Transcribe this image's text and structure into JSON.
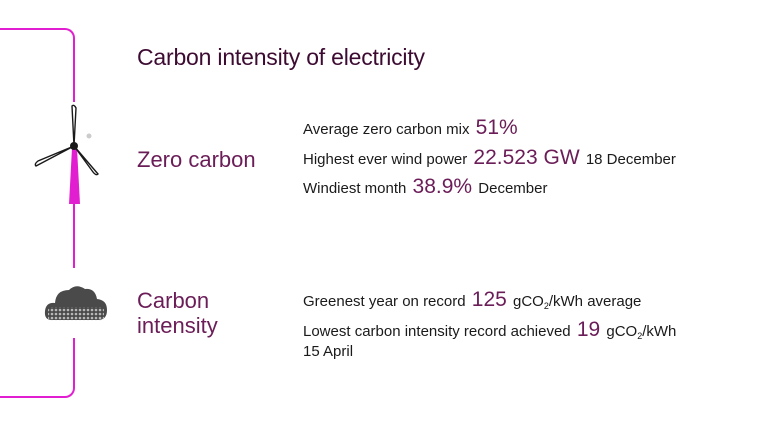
{
  "title": "Carbon intensity of electricity",
  "icons": {
    "wind": "wind-turbine-icon",
    "cloud": "carbon-cloud-icon"
  },
  "colors": {
    "accent": "#e21fd0",
    "heading": "#3d0b32",
    "highlight": "#6b1d58"
  },
  "zero_carbon": {
    "label": "Zero carbon",
    "stats": [
      {
        "prefix": "Average zero carbon mix",
        "value": "51%",
        "suffix": ""
      },
      {
        "prefix": "Highest ever wind power",
        "value": "22.523 GW",
        "suffix": "18 December"
      },
      {
        "prefix": "Windiest month",
        "value": "38.9%",
        "suffix": "December"
      }
    ]
  },
  "carbon_intensity": {
    "label_line1": "Carbon",
    "label_line2": "intensity",
    "stats": [
      {
        "prefix": "Greenest year on record",
        "value": "125",
        "unit_a": "gCO",
        "unit_sub": "2",
        "unit_b": "/kWh",
        "suffix": "average"
      },
      {
        "prefix": "Lowest carbon intensity record achieved",
        "value": "19",
        "unit_a": "gCO",
        "unit_sub": "2",
        "unit_b": "/kWh",
        "date": "15 April"
      }
    ]
  }
}
